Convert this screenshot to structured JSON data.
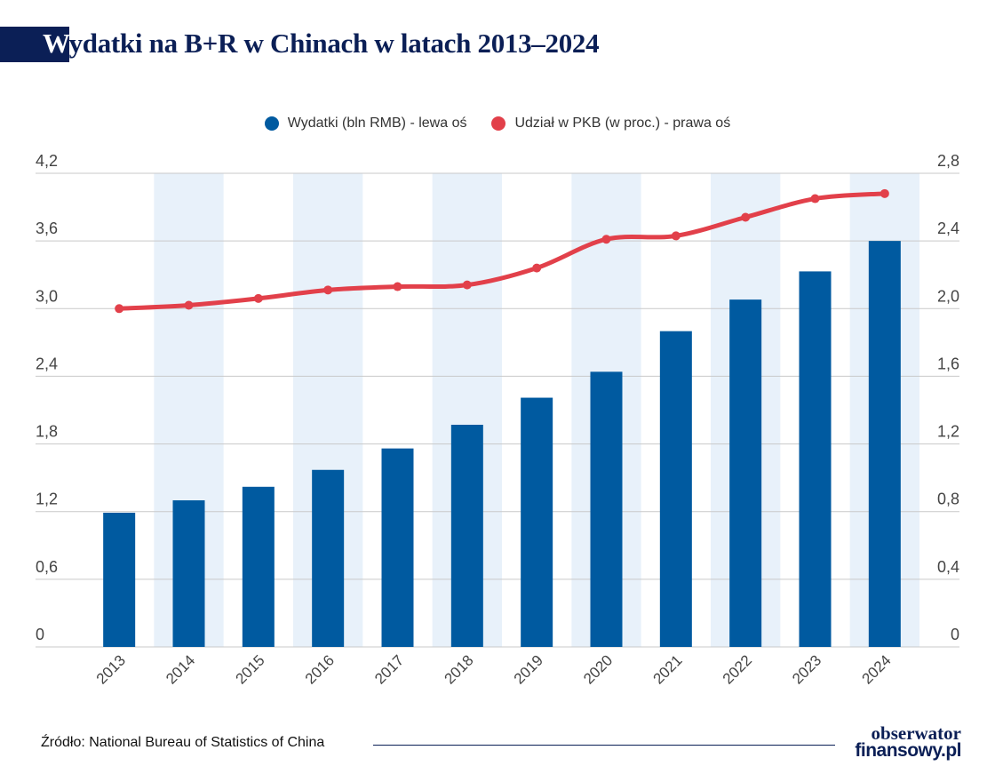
{
  "header": {
    "title_first": "W",
    "title_rest": "ydatki na B+R w Chinach w latach 2013–2024"
  },
  "colors": {
    "bar": "#005aa0",
    "line": "#e2404a",
    "band": "#e8f1fa",
    "brand": "#0b1f56"
  },
  "chart_data": {
    "type": "bar",
    "categories": [
      "2013",
      "2014",
      "2015",
      "2016",
      "2017",
      "2018",
      "2019",
      "2020",
      "2021",
      "2022",
      "2023",
      "2024"
    ],
    "series": [
      {
        "name": "Wydatki (bln RMB) - lewa oś",
        "type": "bar",
        "axis": "left",
        "values": [
          1.19,
          1.3,
          1.42,
          1.57,
          1.76,
          1.97,
          2.21,
          2.44,
          2.8,
          3.08,
          3.33,
          3.6
        ]
      },
      {
        "name": "Udział w PKB (w proc.) - prawa oś",
        "type": "line",
        "axis": "right",
        "values": [
          2.0,
          2.02,
          2.06,
          2.11,
          2.13,
          2.14,
          2.24,
          2.41,
          2.43,
          2.54,
          2.65,
          2.68
        ]
      }
    ],
    "y_left": {
      "lim": [
        0,
        4.2
      ],
      "ticks": [
        "0",
        "0,6",
        "1,2",
        "1,8",
        "2,4",
        "3,0",
        "3,6",
        "4,2"
      ]
    },
    "y_right": {
      "lim": [
        0,
        2.8
      ],
      "ticks": [
        "0",
        "0,4",
        "0,8",
        "1,2",
        "1,6",
        "2,0",
        "2,4",
        "2,8"
      ]
    },
    "grid": true,
    "legend_position": "top-center",
    "alternating_bands": true
  },
  "footer": {
    "source": "Źródło: National Bureau of Statistics of China",
    "logo_line1": "obserwator",
    "logo_line2": "finansowy.pl"
  }
}
